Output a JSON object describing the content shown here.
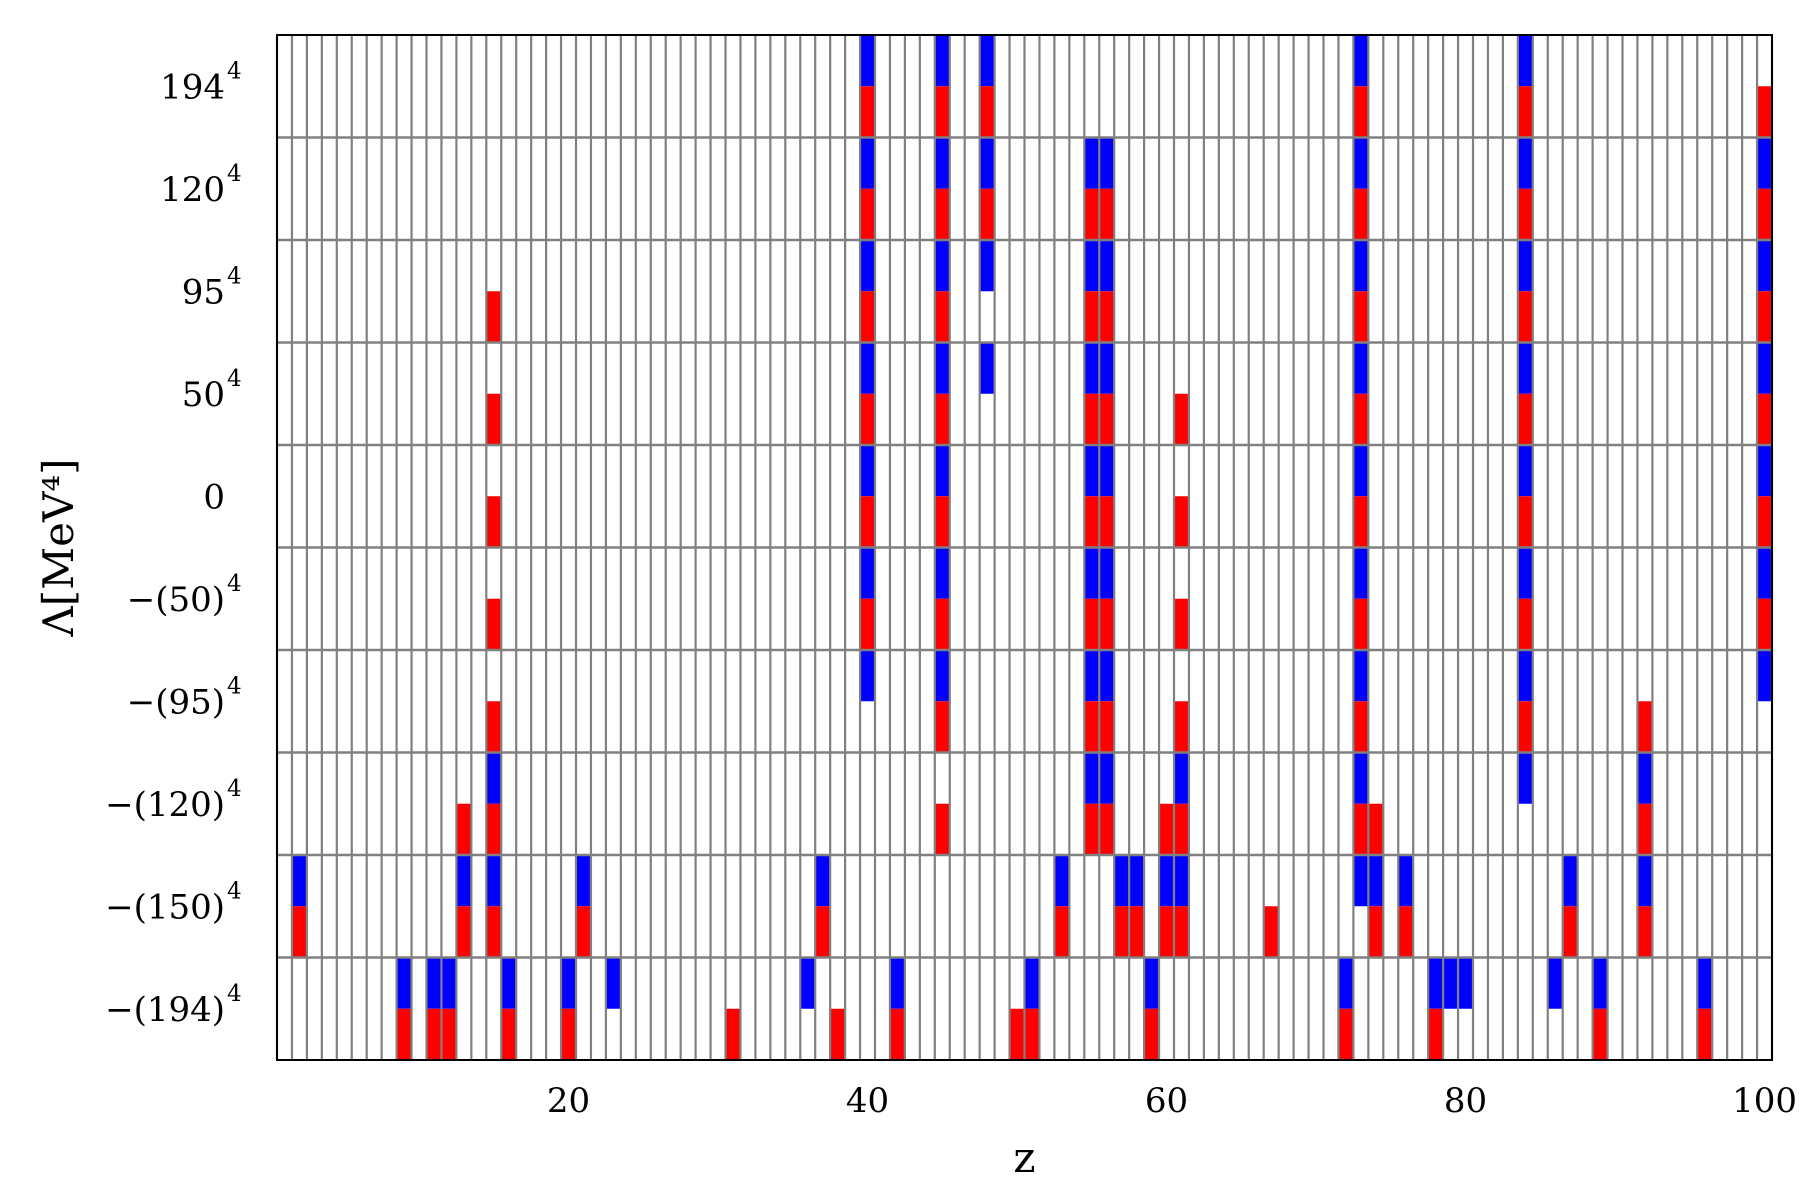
{
  "chart_data": {
    "type": "heatmap",
    "xlabel": "z",
    "ylabel": "Λ[MeV⁴]",
    "x_range": [
      1,
      100
    ],
    "x_ticks": [
      20,
      40,
      60,
      80,
      100
    ],
    "y_tick_labels": [
      {
        "base": "−(194)",
        "exp": "4"
      },
      {
        "base": "−(150)",
        "exp": "4"
      },
      {
        "base": "−(120)",
        "exp": "4"
      },
      {
        "base": "−(95)",
        "exp": "4"
      },
      {
        "base": "−(50)",
        "exp": "4"
      },
      {
        "base": "0",
        "exp": ""
      },
      {
        "base": "50",
        "exp": "4"
      },
      {
        "base": "95",
        "exp": "4"
      },
      {
        "base": "120",
        "exp": "4"
      },
      {
        "base": "194",
        "exp": "4"
      }
    ],
    "rows": 10,
    "legend": "none",
    "grid": true,
    "colors": {
      "blue": "#0000ff",
      "red": "#ff0000",
      "grid": "#808080"
    },
    "cells": [
      {
        "z": 2,
        "row": 1,
        "top": "blue",
        "bottom": "red"
      },
      {
        "z": 9,
        "row": 0,
        "top": "blue",
        "bottom": "red"
      },
      {
        "z": 11,
        "row": 0,
        "top": "blue",
        "bottom": "red"
      },
      {
        "z": 12,
        "row": 0,
        "top": "blue",
        "bottom": "red"
      },
      {
        "z": 13,
        "row": 1,
        "top": "blue",
        "bottom": "red"
      },
      {
        "z": 13,
        "row": 2,
        "top": null,
        "bottom": "red"
      },
      {
        "z": 15,
        "row": 1,
        "top": "blue",
        "bottom": "red"
      },
      {
        "z": 15,
        "row": 2,
        "top": "blue",
        "bottom": "red"
      },
      {
        "z": 15,
        "row": 3,
        "top": null,
        "bottom": "red"
      },
      {
        "z": 15,
        "row": 4,
        "top": null,
        "bottom": "red"
      },
      {
        "z": 15,
        "row": 5,
        "top": null,
        "bottom": "red"
      },
      {
        "z": 15,
        "row": 6,
        "top": null,
        "bottom": "red"
      },
      {
        "z": 15,
        "row": 7,
        "top": null,
        "bottom": "red"
      },
      {
        "z": 16,
        "row": 0,
        "top": "blue",
        "bottom": "red"
      },
      {
        "z": 20,
        "row": 0,
        "top": "blue",
        "bottom": "red"
      },
      {
        "z": 21,
        "row": 1,
        "top": "blue",
        "bottom": "red"
      },
      {
        "z": 23,
        "row": 0,
        "top": "blue",
        "bottom": null
      },
      {
        "z": 31,
        "row": 0,
        "top": null,
        "bottom": "red"
      },
      {
        "z": 36,
        "row": 0,
        "top": "blue",
        "bottom": null
      },
      {
        "z": 37,
        "row": 1,
        "top": "blue",
        "bottom": "red"
      },
      {
        "z": 38,
        "row": 0,
        "top": null,
        "bottom": "red"
      },
      {
        "z": 40,
        "row": 3,
        "top": "blue",
        "bottom": null
      },
      {
        "z": 40,
        "row": 4,
        "top": "blue",
        "bottom": "red"
      },
      {
        "z": 40,
        "row": 5,
        "top": "blue",
        "bottom": "red"
      },
      {
        "z": 40,
        "row": 6,
        "top": "blue",
        "bottom": "red"
      },
      {
        "z": 40,
        "row": 7,
        "top": "blue",
        "bottom": "red"
      },
      {
        "z": 40,
        "row": 8,
        "top": "blue",
        "bottom": "red"
      },
      {
        "z": 40,
        "row": 9,
        "top": "blue",
        "bottom": "red"
      },
      {
        "z": 42,
        "row": 0,
        "top": "blue",
        "bottom": "red"
      },
      {
        "z": 45,
        "row": 2,
        "top": null,
        "bottom": "red"
      },
      {
        "z": 45,
        "row": 3,
        "top": "blue",
        "bottom": "red"
      },
      {
        "z": 45,
        "row": 4,
        "top": "blue",
        "bottom": "red"
      },
      {
        "z": 45,
        "row": 5,
        "top": "blue",
        "bottom": "red"
      },
      {
        "z": 45,
        "row": 6,
        "top": "blue",
        "bottom": "red"
      },
      {
        "z": 45,
        "row": 7,
        "top": "blue",
        "bottom": "red"
      },
      {
        "z": 45,
        "row": 8,
        "top": "blue",
        "bottom": "red"
      },
      {
        "z": 45,
        "row": 9,
        "top": "blue",
        "bottom": "red"
      },
      {
        "z": 48,
        "row": 6,
        "top": "blue",
        "bottom": null
      },
      {
        "z": 48,
        "row": 7,
        "top": "blue",
        "bottom": null
      },
      {
        "z": 48,
        "row": 8,
        "top": "blue",
        "bottom": "red"
      },
      {
        "z": 48,
        "row": 9,
        "top": "blue",
        "bottom": "red"
      },
      {
        "z": 50,
        "row": 0,
        "top": null,
        "bottom": "red"
      },
      {
        "z": 51,
        "row": 0,
        "top": "blue",
        "bottom": "red"
      },
      {
        "z": 53,
        "row": 1,
        "top": "blue",
        "bottom": "red"
      },
      {
        "z": 55,
        "row": 2,
        "top": "blue",
        "bottom": "red"
      },
      {
        "z": 55,
        "row": 3,
        "top": "blue",
        "bottom": "red"
      },
      {
        "z": 55,
        "row": 4,
        "top": "blue",
        "bottom": "red"
      },
      {
        "z": 55,
        "row": 5,
        "top": "blue",
        "bottom": "red"
      },
      {
        "z": 55,
        "row": 6,
        "top": "blue",
        "bottom": "red"
      },
      {
        "z": 55,
        "row": 7,
        "top": "blue",
        "bottom": "red"
      },
      {
        "z": 55,
        "row": 8,
        "top": "blue",
        "bottom": "red"
      },
      {
        "z": 56,
        "row": 2,
        "top": "blue",
        "bottom": "red"
      },
      {
        "z": 56,
        "row": 3,
        "top": "blue",
        "bottom": "red"
      },
      {
        "z": 56,
        "row": 4,
        "top": "blue",
        "bottom": "red"
      },
      {
        "z": 56,
        "row": 5,
        "top": "blue",
        "bottom": "red"
      },
      {
        "z": 56,
        "row": 6,
        "top": "blue",
        "bottom": "red"
      },
      {
        "z": 56,
        "row": 7,
        "top": "blue",
        "bottom": "red"
      },
      {
        "z": 56,
        "row": 8,
        "top": "blue",
        "bottom": "red"
      },
      {
        "z": 57,
        "row": 1,
        "top": "blue",
        "bottom": "red"
      },
      {
        "z": 58,
        "row": 1,
        "top": "blue",
        "bottom": "red"
      },
      {
        "z": 59,
        "row": 0,
        "top": "blue",
        "bottom": "red"
      },
      {
        "z": 60,
        "row": 1,
        "top": "blue",
        "bottom": "red"
      },
      {
        "z": 60,
        "row": 2,
        "top": null,
        "bottom": "red"
      },
      {
        "z": 61,
        "row": 1,
        "top": "blue",
        "bottom": "red"
      },
      {
        "z": 61,
        "row": 2,
        "top": "blue",
        "bottom": "red"
      },
      {
        "z": 61,
        "row": 3,
        "top": null,
        "bottom": "red"
      },
      {
        "z": 61,
        "row": 4,
        "top": null,
        "bottom": "red"
      },
      {
        "z": 61,
        "row": 5,
        "top": null,
        "bottom": "red"
      },
      {
        "z": 61,
        "row": 6,
        "top": null,
        "bottom": "red"
      },
      {
        "z": 67,
        "row": 1,
        "top": null,
        "bottom": "red"
      },
      {
        "z": 72,
        "row": 0,
        "top": "blue",
        "bottom": "red"
      },
      {
        "z": 73,
        "row": 1,
        "top": "blue",
        "bottom": null
      },
      {
        "z": 73,
        "row": 2,
        "top": "blue",
        "bottom": "red"
      },
      {
        "z": 73,
        "row": 3,
        "top": "blue",
        "bottom": "red"
      },
      {
        "z": 73,
        "row": 4,
        "top": "blue",
        "bottom": "red"
      },
      {
        "z": 73,
        "row": 5,
        "top": "blue",
        "bottom": "red"
      },
      {
        "z": 73,
        "row": 6,
        "top": "blue",
        "bottom": "red"
      },
      {
        "z": 73,
        "row": 7,
        "top": "blue",
        "bottom": "red"
      },
      {
        "z": 73,
        "row": 8,
        "top": "blue",
        "bottom": "red"
      },
      {
        "z": 73,
        "row": 9,
        "top": "blue",
        "bottom": "red"
      },
      {
        "z": 74,
        "row": 1,
        "top": "blue",
        "bottom": "red"
      },
      {
        "z": 74,
        "row": 2,
        "top": null,
        "bottom": "red"
      },
      {
        "z": 76,
        "row": 1,
        "top": "blue",
        "bottom": "red"
      },
      {
        "z": 78,
        "row": 0,
        "top": "blue",
        "bottom": "red"
      },
      {
        "z": 79,
        "row": 0,
        "top": "blue",
        "bottom": null
      },
      {
        "z": 80,
        "row": 0,
        "top": "blue",
        "bottom": null
      },
      {
        "z": 84,
        "row": 2,
        "top": "blue",
        "bottom": null
      },
      {
        "z": 84,
        "row": 3,
        "top": "blue",
        "bottom": "red"
      },
      {
        "z": 84,
        "row": 4,
        "top": "blue",
        "bottom": "red"
      },
      {
        "z": 84,
        "row": 5,
        "top": "blue",
        "bottom": "red"
      },
      {
        "z": 84,
        "row": 6,
        "top": "blue",
        "bottom": "red"
      },
      {
        "z": 84,
        "row": 7,
        "top": "blue",
        "bottom": "red"
      },
      {
        "z": 84,
        "row": 8,
        "top": "blue",
        "bottom": "red"
      },
      {
        "z": 84,
        "row": 9,
        "top": "blue",
        "bottom": "red"
      },
      {
        "z": 86,
        "row": 0,
        "top": "blue",
        "bottom": null
      },
      {
        "z": 87,
        "row": 1,
        "top": "blue",
        "bottom": "red"
      },
      {
        "z": 89,
        "row": 0,
        "top": "blue",
        "bottom": "red"
      },
      {
        "z": 92,
        "row": 1,
        "top": "blue",
        "bottom": "red"
      },
      {
        "z": 92,
        "row": 2,
        "top": "blue",
        "bottom": "red"
      },
      {
        "z": 92,
        "row": 3,
        "top": null,
        "bottom": "red"
      },
      {
        "z": 96,
        "row": 0,
        "top": "blue",
        "bottom": "red"
      },
      {
        "z": 100,
        "row": 3,
        "top": "blue",
        "bottom": null
      },
      {
        "z": 100,
        "row": 4,
        "top": "blue",
        "bottom": "red"
      },
      {
        "z": 100,
        "row": 5,
        "top": "blue",
        "bottom": "red"
      },
      {
        "z": 100,
        "row": 6,
        "top": "blue",
        "bottom": "red"
      },
      {
        "z": 100,
        "row": 7,
        "top": "blue",
        "bottom": "red"
      },
      {
        "z": 100,
        "row": 8,
        "top": "blue",
        "bottom": "red"
      },
      {
        "z": 100,
        "row": 9,
        "top": null,
        "bottom": "red"
      }
    ]
  }
}
